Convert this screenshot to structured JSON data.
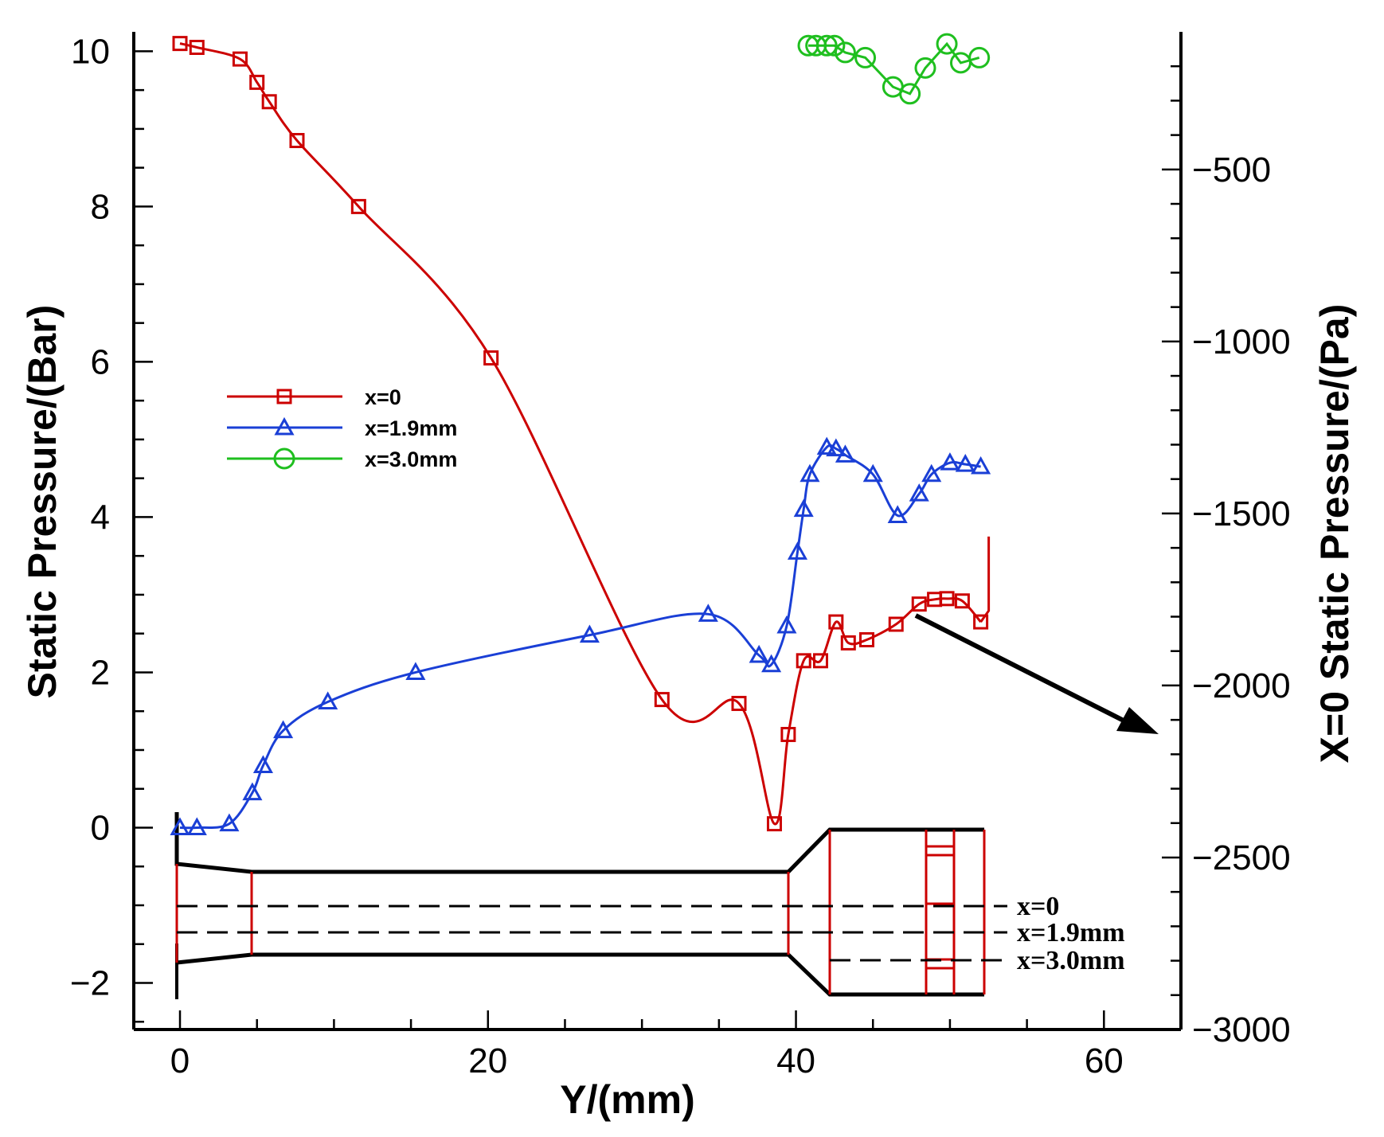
{
  "chart_data": {
    "type": "line",
    "xlabel": "Y/(mm)",
    "ylabel": "Static Pressure/(Bar)",
    "y2label": "X=0 Static Pressure/(Pa)",
    "xlim": [
      -3,
      65
    ],
    "ylim": [
      -2.6,
      10.25
    ],
    "y2lim": [
      -3000,
      -100
    ],
    "x_ticks": [
      0,
      20,
      40,
      60
    ],
    "y_ticks": [
      -2,
      0,
      2,
      4,
      6,
      8,
      10
    ],
    "y2_ticks": [
      -500,
      -1000,
      -1500,
      -2000,
      -2500,
      -3000
    ],
    "x_tick_labels": [
      "0",
      "20",
      "40",
      "60"
    ],
    "y_tick_labels": [
      "−2",
      "0",
      "2",
      "4",
      "6",
      "8",
      "10"
    ],
    "y2_tick_labels": [
      "−500",
      "−1000",
      "−1500",
      "−2000",
      "−2500",
      "−3000"
    ],
    "grid": false,
    "legend_position": "center-left",
    "series": [
      {
        "name": "x=0",
        "axis": "left",
        "color": "#cc0000",
        "marker": "square",
        "x": [
          0,
          1.1,
          3.9,
          5,
          5.8,
          7.6,
          11.6,
          20.2,
          31.3,
          36.3,
          38.6,
          39.5,
          40.5,
          41.6,
          42.6,
          43.4,
          44.6,
          46.5,
          48,
          49,
          49.8,
          50.8,
          52
        ],
        "y": [
          10.1,
          10.05,
          9.9,
          9.6,
          9.35,
          8.85,
          8.0,
          6.05,
          1.65,
          1.6,
          0.05,
          1.2,
          2.15,
          2.15,
          2.65,
          2.38,
          2.42,
          2.62,
          2.88,
          2.94,
          2.95,
          2.92,
          2.65
        ]
      },
      {
        "name": "x=1.9mm",
        "axis": "left",
        "color": "#1a3fd6",
        "marker": "triangle",
        "x": [
          0,
          1.1,
          3.2,
          4.7,
          5.4,
          6.7,
          9.6,
          15.3,
          26.6,
          34.3,
          37.6,
          38.4,
          39.4,
          40.1,
          40.5,
          40.9,
          42,
          42.6,
          43.2,
          45,
          46.6,
          48,
          48.8,
          50,
          51,
          52
        ],
        "y": [
          0,
          0,
          0.05,
          0.45,
          0.8,
          1.25,
          1.62,
          2.0,
          2.48,
          2.75,
          2.22,
          2.1,
          2.6,
          3.55,
          4.1,
          4.55,
          4.9,
          4.88,
          4.8,
          4.55,
          4.02,
          4.3,
          4.55,
          4.7,
          4.68,
          4.65
        ]
      },
      {
        "name": "x=3.0mm",
        "axis": "right",
        "color": "#1fbf1f",
        "marker": "circle",
        "x": [
          40.8,
          41.3,
          42,
          42.5,
          43.2,
          44.5,
          46.3,
          47.4,
          48.4,
          49.8,
          50.7,
          51.9
        ],
        "y": [
          -140,
          -140,
          -140,
          -140,
          -160,
          -175,
          -260,
          -280,
          -205,
          -135,
          -190,
          -175
        ]
      }
    ]
  },
  "inset": {
    "labels": [
      "x=0",
      "x=1.9mm",
      "x=3.0mm"
    ]
  }
}
